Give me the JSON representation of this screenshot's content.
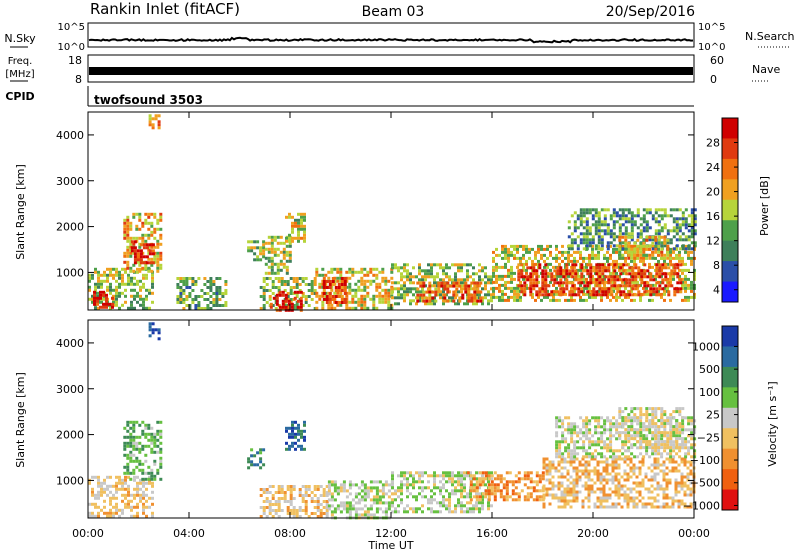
{
  "header": {
    "title": "Rankin Inlet (fitACF)",
    "beam": "Beam 03",
    "date": "20/Sep/2016"
  },
  "noise_panel": {
    "left_label": "N.Sky",
    "right_label": "N.Search",
    "ticks": [
      "10^5",
      "10^0"
    ]
  },
  "freq_panel": {
    "left_label_1": "Freq.",
    "left_label_2": "[MHz]",
    "left_ticks": [
      "18",
      "8"
    ],
    "right_label": "Nave",
    "right_ticks": [
      "60",
      "0"
    ]
  },
  "cpid_panel": {
    "label": "CPID",
    "program": "twofsound 3503"
  },
  "colors": {
    "power_scale": [
      "#1a1aff",
      "#2b4fa8",
      "#3e7f5a",
      "#4ea04a",
      "#b6d43a",
      "#f0a020",
      "#f07010",
      "#e03a10",
      "#d00000"
    ],
    "velocity_scale": [
      "#1a3aa8",
      "#2a6aa0",
      "#3d8a55",
      "#66c040",
      "#c8c8c8",
      "#f0c060",
      "#f09030",
      "#f06010",
      "#e01010"
    ]
  },
  "chart_data": [
    {
      "type": "heatmap",
      "name": "power",
      "ylabel": "Slant Range [km]",
      "yticks": [
        1000,
        2000,
        3000,
        4000
      ],
      "ylim": [
        180,
        4500
      ],
      "xticks": [
        "00:00",
        "04:00",
        "08:00",
        "12:00",
        "16:00",
        "20:00",
        "00:00"
      ],
      "xlim_hours": [
        0,
        24
      ],
      "colorbar": {
        "label": "Power [dB]",
        "ticks": [
          "28",
          "24",
          "20",
          "16",
          "12",
          "8",
          "4"
        ],
        "range": [
          0,
          30
        ]
      },
      "patches": [
        {
          "t0": 0.0,
          "t1": 2.5,
          "r0": 200,
          "r1": 1100,
          "v": 14
        },
        {
          "t0": 0.2,
          "t1": 1.0,
          "r0": 250,
          "r1": 600,
          "v": 26
        },
        {
          "t0": 1.4,
          "t1": 2.9,
          "r0": 1000,
          "r1": 2300,
          "v": 18
        },
        {
          "t0": 1.7,
          "t1": 2.6,
          "r0": 1200,
          "r1": 1700,
          "v": 26
        },
        {
          "t0": 2.4,
          "t1": 2.8,
          "r0": 4150,
          "r1": 4450,
          "v": 20
        },
        {
          "t0": 3.5,
          "t1": 5.5,
          "r0": 200,
          "r1": 900,
          "v": 12
        },
        {
          "t0": 6.3,
          "t1": 6.9,
          "r0": 1300,
          "r1": 1700,
          "v": 13
        },
        {
          "t0": 7.0,
          "t1": 8.0,
          "r0": 1000,
          "r1": 1800,
          "v": 14
        },
        {
          "t0": 7.8,
          "t1": 8.6,
          "r0": 1700,
          "r1": 2300,
          "v": 15
        },
        {
          "t0": 6.8,
          "t1": 9.0,
          "r0": 200,
          "r1": 900,
          "v": 14
        },
        {
          "t0": 7.2,
          "t1": 8.4,
          "r0": 200,
          "r1": 600,
          "v": 28
        },
        {
          "t0": 9.0,
          "t1": 12.0,
          "r0": 200,
          "r1": 1100,
          "v": 16
        },
        {
          "t0": 9.3,
          "t1": 10.2,
          "r0": 350,
          "r1": 900,
          "v": 25
        },
        {
          "t0": 12.0,
          "t1": 16.0,
          "r0": 300,
          "r1": 1200,
          "v": 14
        },
        {
          "t0": 13.0,
          "t1": 15.5,
          "r0": 400,
          "r1": 800,
          "v": 22
        },
        {
          "t0": 16.0,
          "t1": 24.0,
          "r0": 400,
          "r1": 1600,
          "v": 16
        },
        {
          "t0": 17.0,
          "t1": 23.5,
          "r0": 500,
          "r1": 1200,
          "v": 25
        },
        {
          "t0": 19.0,
          "t1": 24.0,
          "r0": 1500,
          "r1": 2400,
          "v": 10
        },
        {
          "t0": 21.0,
          "t1": 23.0,
          "r0": 1300,
          "r1": 1800,
          "v": 18
        }
      ]
    },
    {
      "type": "heatmap",
      "name": "velocity",
      "ylabel": "Slant Range [km]",
      "yticks": [
        1000,
        2000,
        3000,
        4000
      ],
      "ylim": [
        180,
        4500
      ],
      "xticks": [
        "00:00",
        "04:00",
        "08:00",
        "12:00",
        "16:00",
        "20:00",
        "00:00"
      ],
      "xlim_hours": [
        0,
        24
      ],
      "xlabel": "Time UT",
      "colorbar": {
        "label": "Velocity [m s⁻¹]",
        "ticks": [
          "1000",
          "500",
          "100",
          "25",
          "−25",
          "−100",
          "−500",
          "−1000"
        ],
        "range": [
          -1000,
          1000
        ]
      },
      "patches": [
        {
          "t0": 0.0,
          "t1": 2.5,
          "r0": 200,
          "r1": 1100,
          "v": -150
        },
        {
          "t0": 1.4,
          "t1": 2.9,
          "r0": 1000,
          "r1": 2300,
          "v": 300
        },
        {
          "t0": 2.4,
          "t1": 2.8,
          "r0": 4100,
          "r1": 4450,
          "v": 800
        },
        {
          "t0": 6.3,
          "t1": 6.9,
          "r0": 1300,
          "r1": 1700,
          "v": 500
        },
        {
          "t0": 7.8,
          "t1": 8.6,
          "r0": 1700,
          "r1": 2300,
          "v": 700
        },
        {
          "t0": 6.8,
          "t1": 9.5,
          "r0": 200,
          "r1": 900,
          "v": -200
        },
        {
          "t0": 9.5,
          "t1": 12.0,
          "r0": 200,
          "r1": 1000,
          "v": 60
        },
        {
          "t0": 12.0,
          "t1": 16.0,
          "r0": 300,
          "r1": 1200,
          "v": 40
        },
        {
          "t0": 15.0,
          "t1": 18.0,
          "r0": 600,
          "r1": 1200,
          "v": -400
        },
        {
          "t0": 18.0,
          "t1": 24.0,
          "r0": 400,
          "r1": 1500,
          "v": -250
        },
        {
          "t0": 18.5,
          "t1": 24.0,
          "r0": 1500,
          "r1": 2400,
          "v": 0
        },
        {
          "t0": 21.0,
          "t1": 23.5,
          "r0": 1700,
          "r1": 2600,
          "v": -60
        }
      ]
    }
  ]
}
